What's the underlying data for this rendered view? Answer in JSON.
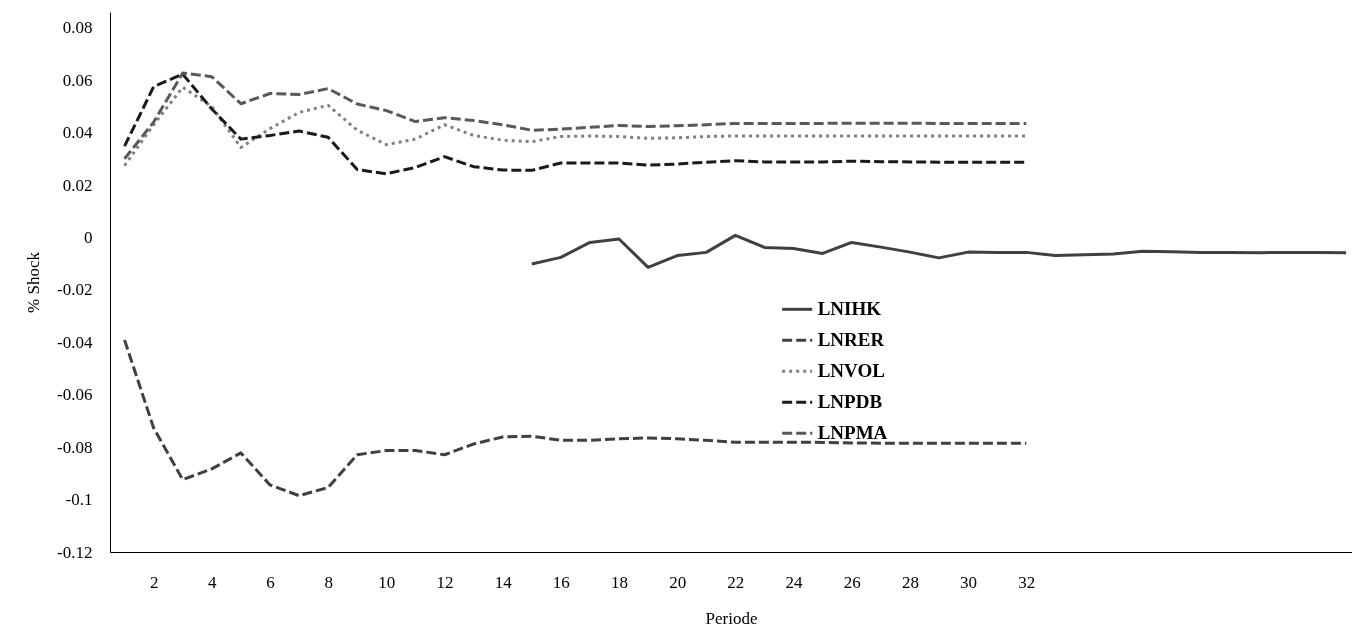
{
  "chart_data": {
    "type": "line",
    "xlabel": "Periode",
    "ylabel": "% Shock",
    "x": [
      1,
      2,
      3,
      4,
      5,
      6,
      7,
      8,
      9,
      10,
      11,
      12,
      13,
      14,
      15,
      16,
      17,
      18,
      19,
      20,
      21,
      22,
      23,
      24,
      25,
      26,
      27,
      28,
      29,
      30,
      31,
      32
    ],
    "xlim": [
      0.5,
      43.2
    ],
    "xticks": [
      2,
      4,
      6,
      8,
      10,
      12,
      14,
      16,
      18,
      20,
      22,
      24,
      26,
      28,
      30,
      32
    ],
    "ylim": [
      -0.12,
      0.086
    ],
    "yticks": [
      -0.12,
      -0.1,
      -0.08,
      -0.06,
      -0.04,
      -0.02,
      0,
      0.02,
      0.04,
      0.06,
      0.08
    ],
    "legend": "right",
    "grid": false,
    "series": [
      {
        "name": "LNIHK",
        "color": "#404040",
        "line_style": "solid",
        "x": [
          15,
          16,
          17,
          18,
          19,
          20,
          21,
          22,
          23,
          24,
          25,
          26,
          27,
          28,
          29,
          30,
          31,
          32,
          33,
          34,
          35,
          36,
          37,
          38,
          39,
          40,
          41,
          42,
          43
        ],
        "values": [
          -0.0101,
          -0.0076,
          -0.0019,
          -0.0006,
          -0.0114,
          -0.0069,
          -0.0057,
          0.0008,
          -0.0038,
          -0.0042,
          -0.0061,
          -0.0019,
          -0.0037,
          -0.0056,
          -0.0078,
          -0.0056,
          -0.0057,
          -0.0057,
          -0.0069,
          -0.0066,
          -0.0063,
          -0.0053,
          -0.0055,
          -0.0057,
          -0.0057,
          -0.0058,
          -0.0057,
          -0.0057,
          -0.0058
        ]
      },
      {
        "name": "LNRER",
        "color": "#404040",
        "line_style": "dashed",
        "values": [
          -0.0391,
          -0.0727,
          -0.0924,
          -0.0883,
          -0.0822,
          -0.0944,
          -0.0985,
          -0.0954,
          -0.0829,
          -0.0813,
          -0.0813,
          -0.0829,
          -0.0788,
          -0.0761,
          -0.0758,
          -0.0774,
          -0.0774,
          -0.0768,
          -0.0765,
          -0.0768,
          -0.0774,
          -0.0781,
          -0.0781,
          -0.0781,
          -0.0782,
          -0.0784,
          -0.0785,
          -0.0785,
          -0.0785,
          -0.0785,
          -0.0785,
          -0.0785
        ]
      },
      {
        "name": "LNVOL",
        "color": "#808080",
        "line_style": "dotted",
        "values": [
          0.0274,
          0.043,
          0.0573,
          0.0499,
          0.0343,
          0.0415,
          0.0477,
          0.0504,
          0.0409,
          0.0354,
          0.0375,
          0.043,
          0.0389,
          0.0371,
          0.0365,
          0.0385,
          0.0387,
          0.0385,
          0.0378,
          0.038,
          0.0385,
          0.0387,
          0.0387,
          0.0387,
          0.0387,
          0.0387,
          0.0387,
          0.0387,
          0.0387,
          0.0387,
          0.0387,
          0.0387
        ]
      },
      {
        "name": "LNPDB",
        "color": "#1a1a1a",
        "line_style": "dashed",
        "values": [
          0.0348,
          0.0575,
          0.0623,
          0.049,
          0.0375,
          0.0389,
          0.0406,
          0.0382,
          0.0259,
          0.0243,
          0.0267,
          0.0308,
          0.027,
          0.0257,
          0.0256,
          0.0284,
          0.0284,
          0.0284,
          0.0276,
          0.028,
          0.0287,
          0.0293,
          0.0288,
          0.0288,
          0.0288,
          0.0291,
          0.0289,
          0.0288,
          0.0287,
          0.0287,
          0.0287,
          0.0287
        ]
      },
      {
        "name": "LNPMA",
        "color": "#595959",
        "line_style": "dashed",
        "values": [
          0.03,
          0.044,
          0.0627,
          0.0613,
          0.051,
          0.0549,
          0.0545,
          0.0568,
          0.0509,
          0.0484,
          0.0442,
          0.0457,
          0.0446,
          0.043,
          0.0409,
          0.0413,
          0.042,
          0.0427,
          0.0423,
          0.0426,
          0.043,
          0.0435,
          0.0435,
          0.0435,
          0.0435,
          0.0436,
          0.0436,
          0.0436,
          0.0435,
          0.0435,
          0.0435,
          0.0435
        ]
      }
    ]
  }
}
